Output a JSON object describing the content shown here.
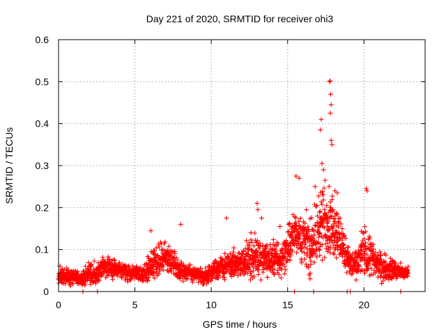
{
  "chart_data": {
    "type": "scatter",
    "title": "Day 221 of 2020, SRMTID for receiver ohi3",
    "xlabel": "GPS time / hours",
    "ylabel": "SRMTID / TECUs",
    "xlim": [
      0,
      24
    ],
    "ylim": [
      0,
      0.6
    ],
    "x_ticks": [
      0,
      5,
      10,
      15,
      20
    ],
    "x_tick_labels": [
      "0",
      "5",
      "10",
      "15",
      "20"
    ],
    "y_ticks": [
      0,
      0.1,
      0.2,
      0.3,
      0.4,
      0.5,
      0.6
    ],
    "y_tick_labels": [
      "0",
      "0.1",
      "0.2",
      "0.3",
      "0.4",
      "0.5",
      "0.6"
    ],
    "grid": true,
    "marker": "plus",
    "color": "#ff0000",
    "series": [
      {
        "name": "SRMTID",
        "profile_hours": [
          0,
          0.5,
          1,
          1.5,
          2,
          2.5,
          3,
          3.5,
          4,
          4.5,
          5,
          5.5,
          6,
          6.5,
          7,
          7.5,
          8,
          8.5,
          9,
          9.5,
          10,
          10.5,
          11,
          11.5,
          12,
          12.5,
          13,
          13.5,
          14,
          14.5,
          15,
          15.5,
          16,
          16.5,
          17,
          17.5,
          18,
          18.5,
          19,
          19.5,
          20,
          20.5,
          21,
          21.5,
          22,
          22.5,
          22.9
        ],
        "profile_median": [
          0.04,
          0.035,
          0.035,
          0.03,
          0.04,
          0.045,
          0.06,
          0.055,
          0.05,
          0.045,
          0.045,
          0.04,
          0.06,
          0.08,
          0.08,
          0.07,
          0.05,
          0.045,
          0.04,
          0.035,
          0.045,
          0.055,
          0.06,
          0.065,
          0.07,
          0.075,
          0.085,
          0.08,
          0.075,
          0.075,
          0.1,
          0.15,
          0.12,
          0.1,
          0.15,
          0.17,
          0.16,
          0.12,
          0.07,
          0.06,
          0.1,
          0.08,
          0.06,
          0.055,
          0.05,
          0.045,
          0.045
        ],
        "profile_spread": [
          0.025,
          0.02,
          0.02,
          0.02,
          0.025,
          0.025,
          0.025,
          0.025,
          0.02,
          0.02,
          0.02,
          0.02,
          0.035,
          0.04,
          0.035,
          0.03,
          0.025,
          0.02,
          0.02,
          0.02,
          0.025,
          0.03,
          0.03,
          0.035,
          0.04,
          0.05,
          0.05,
          0.05,
          0.045,
          0.045,
          0.05,
          0.06,
          0.07,
          0.07,
          0.08,
          0.09,
          0.08,
          0.06,
          0.04,
          0.035,
          0.06,
          0.05,
          0.035,
          0.03,
          0.025,
          0.02,
          0.02
        ],
        "peaks": [
          {
            "x": 17.75,
            "y": 0.5
          },
          {
            "x": 17.78,
            "y": 0.502
          },
          {
            "x": 17.82,
            "y": 0.47
          },
          {
            "x": 17.85,
            "y": 0.445
          },
          {
            "x": 17.8,
            "y": 0.425
          },
          {
            "x": 17.2,
            "y": 0.41
          },
          {
            "x": 17.15,
            "y": 0.385
          },
          {
            "x": 17.85,
            "y": 0.36
          },
          {
            "x": 17.9,
            "y": 0.35
          },
          {
            "x": 17.25,
            "y": 0.305
          },
          {
            "x": 17.35,
            "y": 0.29
          },
          {
            "x": 15.55,
            "y": 0.275
          },
          {
            "x": 15.75,
            "y": 0.27
          },
          {
            "x": 17.45,
            "y": 0.265
          },
          {
            "x": 16.8,
            "y": 0.25
          },
          {
            "x": 20.15,
            "y": 0.245
          },
          {
            "x": 20.2,
            "y": 0.24
          },
          {
            "x": 18.1,
            "y": 0.24
          },
          {
            "x": 18.25,
            "y": 0.235
          },
          {
            "x": 13.0,
            "y": 0.21
          },
          {
            "x": 13.05,
            "y": 0.195
          },
          {
            "x": 13.3,
            "y": 0.175
          },
          {
            "x": 11.0,
            "y": 0.175
          },
          {
            "x": 8.0,
            "y": 0.16
          },
          {
            "x": 6.05,
            "y": 0.145
          },
          {
            "x": 14.5,
            "y": 0.155
          },
          {
            "x": 12.6,
            "y": 0.14
          }
        ],
        "zero_values": [
          {
            "x": 1.6,
            "y": 0
          },
          {
            "x": 2.55,
            "y": 0
          },
          {
            "x": 15.45,
            "y": 0
          },
          {
            "x": 16.7,
            "y": 0
          },
          {
            "x": 18.9,
            "y": 0
          },
          {
            "x": 19.1,
            "y": 0
          },
          {
            "x": 22.4,
            "y": 0
          }
        ]
      }
    ]
  }
}
